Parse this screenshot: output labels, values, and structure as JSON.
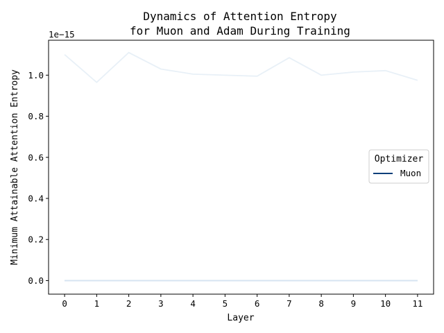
{
  "chart_data": {
    "type": "line",
    "title_line1": "Dynamics of Attention Entropy",
    "title_line2": "for Muon and Adam During Training",
    "xlabel": "Layer",
    "ylabel": "Minimum Attainable Attention Entropy",
    "y_offset_label": "1e−15",
    "x": [
      0,
      1,
      2,
      3,
      4,
      5,
      6,
      7,
      8,
      9,
      10,
      11
    ],
    "xlim": [
      -0.5,
      11.5
    ],
    "ylim": [
      -0.066,
      1.17
    ],
    "y_ticks": [
      0.0,
      0.2,
      0.4,
      0.6,
      0.8,
      1.0
    ],
    "y_tick_labels": [
      "0.0",
      "0.2",
      "0.4",
      "0.6",
      "0.8",
      "1.0"
    ],
    "x_tick_labels": [
      "0",
      "1",
      "2",
      "3",
      "4",
      "5",
      "6",
      "7",
      "8",
      "9",
      "10",
      "11"
    ],
    "grid": false,
    "legend": {
      "title": "Optimizer",
      "placement": "center-right",
      "entries": [
        {
          "label": "Muon",
          "color": "#0d3f7a"
        }
      ]
    },
    "series": [
      {
        "color": "#e8f0f7",
        "values": [
          1.1,
          0.965,
          1.11,
          1.03,
          1.005,
          1.0,
          0.995,
          1.085,
          1.0,
          1.015,
          1.022,
          0.975
        ]
      },
      {
        "color": "#c6dbed",
        "values": [
          0,
          0,
          0,
          0,
          0,
          0,
          0,
          0,
          0,
          0,
          0,
          0
        ]
      },
      {
        "color": "#d6e4f1",
        "values": [
          0,
          0,
          0,
          0,
          0,
          0,
          0,
          0,
          0,
          0,
          0,
          0
        ]
      }
    ]
  }
}
